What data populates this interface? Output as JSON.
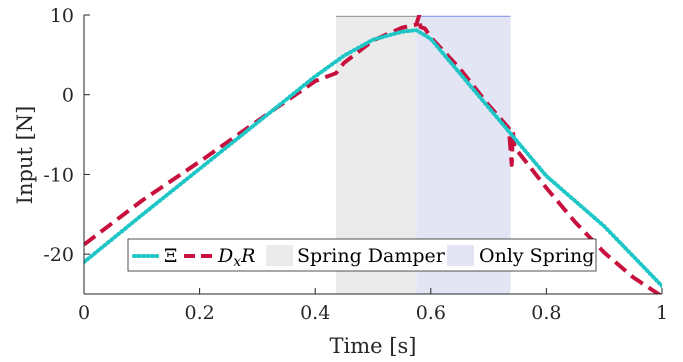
{
  "chart_data": {
    "type": "line",
    "xlabel": "Time [s]",
    "ylabel": "Input [N]",
    "xlim": [
      0,
      1
    ],
    "ylim": [
      -25,
      10
    ],
    "xticks": [
      0,
      0.2,
      0.4,
      0.6,
      0.8,
      1
    ],
    "xtick_labels": [
      "0",
      "0.2",
      "0.4",
      "0.6",
      "0.8",
      "1"
    ],
    "yticks": [
      -20,
      -10,
      0,
      10
    ],
    "ytick_labels": [
      "-20",
      "-10",
      "0",
      "10"
    ],
    "grid": false,
    "legend_position": "bottom",
    "regions": [
      {
        "name": "Spring Damper",
        "x_start": 0.436,
        "x_end": 0.575,
        "color": "#ebebeb",
        "edge_color": "#a0a0a0"
      },
      {
        "name": "Only Spring",
        "x_start": 0.575,
        "x_end": 0.738,
        "color": "#e3e5f5",
        "edge_color": "#9aa4ee"
      }
    ],
    "series": [
      {
        "name": "Ξ",
        "style": "dotted",
        "color": "#1fc6c6",
        "x": [
          0,
          0.1,
          0.2,
          0.3,
          0.4,
          0.45,
          0.5,
          0.55,
          0.575,
          0.6,
          0.7,
          0.8,
          0.9,
          1.0
        ],
        "y": [
          -21,
          -15.1,
          -9.3,
          -3.5,
          2.3,
          4.9,
          6.9,
          7.9,
          8.1,
          7.0,
          -1.6,
          -10.2,
          -16.5,
          -24
        ]
      },
      {
        "name": "D_xR",
        "style": "dashed",
        "color": "#c8103e",
        "x": [
          0,
          0.1,
          0.2,
          0.3,
          0.4,
          0.436,
          0.45,
          0.5,
          0.55,
          0.575,
          0.58,
          0.582,
          0.59,
          0.6,
          0.65,
          0.7,
          0.735,
          0.74,
          0.742,
          0.745,
          0.8,
          0.85,
          0.9,
          0.95,
          1.0
        ],
        "y": [
          -18.8,
          -13.3,
          -8.4,
          -3.3,
          1.7,
          2.7,
          4.0,
          6.8,
          8.4,
          8.8,
          10.0,
          8.5,
          8.3,
          7.2,
          3.3,
          -1.3,
          -4.2,
          -8.8,
          -4.6,
          -6.6,
          -11.7,
          -16.0,
          -19.8,
          -22.9,
          -25.3
        ]
      }
    ]
  },
  "legend": {
    "entries": [
      {
        "label": "Ξ"
      },
      {
        "label": "D_xR",
        "base": "D",
        "subscript": "x",
        "suffix": "R"
      },
      {
        "label": "Spring Damper"
      },
      {
        "label": "Only Spring"
      }
    ]
  }
}
